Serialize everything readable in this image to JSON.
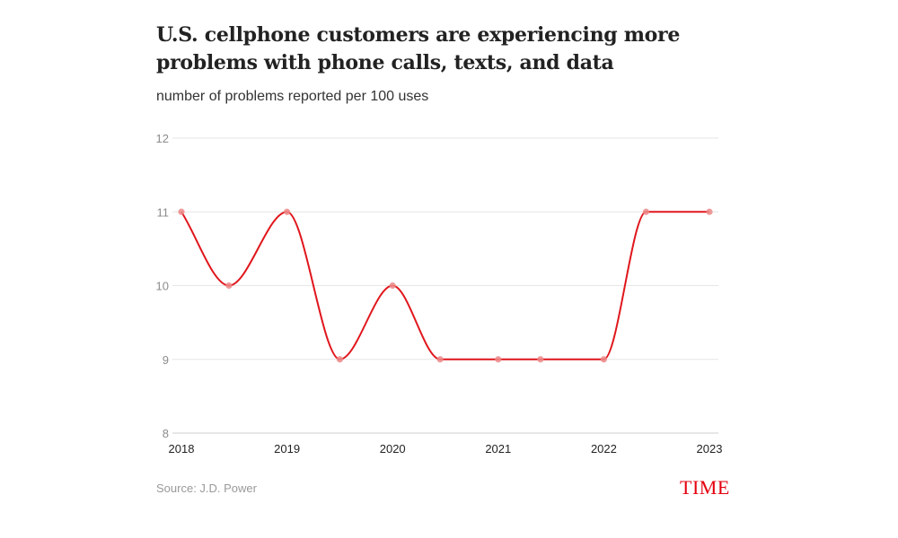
{
  "chart_data": {
    "type": "line",
    "title": "U.S. cellphone customers are experiencing more problems with phone calls, texts, and data",
    "subtitle": "number of problems reported per 100 uses",
    "xlabel": "",
    "ylabel": "",
    "x": [
      2018,
      2018.45,
      2019,
      2019.5,
      2020,
      2020.45,
      2021,
      2021.4,
      2022,
      2022.4,
      2023
    ],
    "series": [
      {
        "name": "Problems per 100 uses",
        "values": [
          11,
          10,
          11,
          9,
          10,
          9,
          9,
          9,
          9,
          11,
          11
        ]
      }
    ],
    "x_ticks": [
      "2018",
      "2019",
      "2020",
      "2021",
      "2022",
      "2023"
    ],
    "y_ticks": [
      "8",
      "9",
      "10",
      "11",
      "12"
    ],
    "ylim": [
      8,
      12
    ],
    "xlim": [
      2018,
      2023
    ],
    "grid": true,
    "line_color": "#e0161c",
    "marker_color": "#ec8a8a",
    "grid_color": "#e6e6e6",
    "source": "Source: J.D. Power",
    "logo": "TIME"
  }
}
